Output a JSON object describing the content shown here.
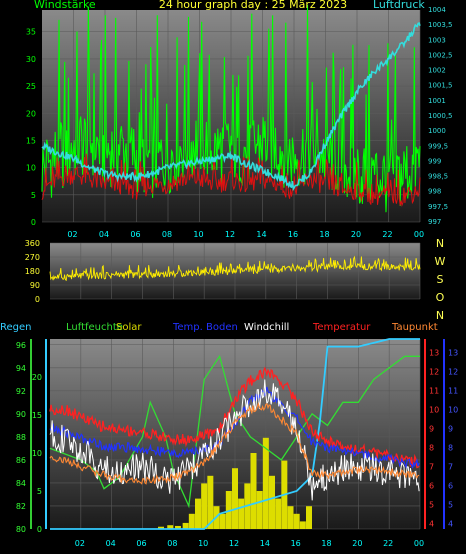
{
  "header": {
    "left_label": "Windstärke",
    "title": "24 hour graph day : 25 März 2023",
    "right_label": "Luftdruck"
  },
  "chart_data": [
    {
      "type": "line",
      "title": "24 hour graph day : 25 März 2023",
      "x_ticks": [
        "02",
        "04",
        "06",
        "08",
        "10",
        "12",
        "14",
        "16",
        "18",
        "20",
        "22",
        "00"
      ],
      "xlim": [
        0,
        24
      ],
      "left_axis": {
        "label": "Windstärke",
        "ticks": [
          0,
          5,
          10,
          15,
          20,
          25,
          30,
          35
        ],
        "ylim": [
          0,
          39
        ]
      },
      "right_axis": {
        "label": "Luftdruck",
        "ticks": [
          "997",
          "997,5",
          "998",
          "998,5",
          "999",
          "999,5",
          "1000",
          "1000,5",
          "1001",
          "1001,5",
          "1002",
          "1002,5",
          "1003",
          "1003,5",
          "1004"
        ],
        "ylim": [
          997,
          1004
        ]
      },
      "series": [
        {
          "name": "Windstärke",
          "axis": "left",
          "color": "#00ff00",
          "x": [
            0,
            1,
            2,
            3,
            4,
            5,
            6,
            7,
            8,
            9,
            10,
            11,
            12,
            13,
            14,
            15,
            16,
            17,
            18,
            19,
            20,
            21,
            22,
            23,
            24
          ],
          "y": [
            10,
            12,
            14,
            15,
            13,
            14,
            12,
            11,
            12,
            14,
            15,
            13,
            14,
            13,
            15,
            14,
            12,
            14,
            12,
            11,
            9,
            9,
            8,
            9,
            11
          ]
        },
        {
          "name": "",
          "axis": "left",
          "color": "#dd1111",
          "x": [
            0,
            1,
            2,
            3,
            4,
            5,
            6,
            7,
            8,
            9,
            10,
            11,
            12,
            13,
            14,
            15,
            16,
            17,
            18,
            19,
            20,
            21,
            22,
            23,
            24
          ],
          "y": [
            6,
            8,
            9,
            8,
            7,
            7,
            6,
            7,
            7,
            8,
            8,
            7,
            8,
            7,
            8,
            7,
            6,
            8,
            7,
            6,
            6,
            5,
            5,
            5,
            6
          ]
        },
        {
          "name": "Luftdruck",
          "axis": "right",
          "color": "#33dddd",
          "x": [
            0,
            1,
            2,
            3,
            4,
            5,
            6,
            7,
            8,
            9,
            10,
            11,
            12,
            13,
            14,
            15,
            16,
            17,
            18,
            19,
            20,
            21,
            22,
            23,
            24
          ],
          "y": [
            999.5,
            999.3,
            999.1,
            998.8,
            998.6,
            998.5,
            998.5,
            998.6,
            998.8,
            998.9,
            999.0,
            999.1,
            999.2,
            998.9,
            998.7,
            998.5,
            998.2,
            998.6,
            999.6,
            1000.5,
            1001.3,
            1001.9,
            1002.4,
            1002.9,
            1003.6
          ]
        }
      ],
      "grid": true
    },
    {
      "type": "line",
      "left_axis": {
        "ticks": [
          0,
          90,
          180,
          270,
          360
        ],
        "ylim": [
          0,
          360
        ]
      },
      "right_labels": [
        "N",
        "W",
        "S",
        "O",
        "N"
      ],
      "series": [
        {
          "name": "",
          "color": "#ffee00",
          "x": [
            0,
            2,
            4,
            6,
            8,
            10,
            12,
            14,
            16,
            18,
            20,
            22,
            24
          ],
          "y": [
            140,
            150,
            155,
            160,
            165,
            175,
            180,
            190,
            195,
            205,
            215,
            205,
            210
          ]
        }
      ],
      "grid": true
    },
    {
      "type": "line",
      "x_ticks": [
        "02",
        "04",
        "06",
        "08",
        "10",
        "12",
        "14",
        "16",
        "18",
        "20",
        "22",
        "00"
      ],
      "xlim": [
        0,
        24
      ],
      "legend": [
        {
          "label": "Regen",
          "color": "#33ccff"
        },
        {
          "label": "Luftfeuchte",
          "color": "#33dd33"
        },
        {
          "label": "Solar",
          "color": "#dddd00"
        },
        {
          "label": "Temp. Boden",
          "color": "#2233ff"
        },
        {
          "label": "Windchill",
          "color": "#ffffff"
        },
        {
          "label": "Temperatur",
          "color": "#ff2222"
        },
        {
          "label": "Taupunkt",
          "color": "#ff8833"
        }
      ],
      "axis_humidity": {
        "ticks": [
          80,
          82,
          84,
          86,
          88,
          90,
          92,
          94,
          96
        ],
        "ylim": [
          80,
          96.5
        ]
      },
      "axis_rain": {
        "ticks": [
          0,
          5,
          10,
          15,
          20
        ],
        "ylim": [
          0,
          25
        ]
      },
      "axis_temp": {
        "ticks": [
          4,
          5,
          6,
          7,
          8,
          9,
          10,
          11,
          12,
          13
        ],
        "ylim": [
          3.7,
          13.7
        ]
      },
      "axis_soil": {
        "ticks": [
          4,
          5,
          6,
          7,
          8,
          9,
          10,
          11,
          12,
          13
        ],
        "ylim": [
          3.7,
          13.7
        ]
      },
      "series": [
        {
          "name": "Luftfeuchte",
          "axis": "humidity",
          "color": "#33dd33",
          "x": [
            0,
            2,
            3,
            3.5,
            4.5,
            6,
            6.5,
            7.5,
            8,
            9,
            10,
            11,
            12,
            13,
            14,
            15,
            16,
            17,
            18,
            19,
            20,
            21,
            22,
            23,
            24
          ],
          "y": [
            87,
            86,
            85,
            83.5,
            84.5,
            88,
            91,
            88,
            85,
            82,
            93,
            95,
            90,
            88,
            87,
            86,
            88,
            90,
            89,
            91,
            91,
            93,
            94,
            95,
            95
          ]
        },
        {
          "name": "Regen",
          "axis": "rain",
          "color": "#33ccff",
          "x": [
            0,
            10,
            11,
            16,
            17,
            17.5,
            18,
            20,
            22,
            24
          ],
          "y": [
            0,
            0,
            2,
            5,
            7,
            14,
            24,
            24,
            25,
            25
          ]
        },
        {
          "name": "Temperatur",
          "axis": "temp",
          "color": "#ff2222",
          "x": [
            0,
            1,
            2,
            3,
            4,
            5,
            6,
            7,
            8,
            9,
            10,
            11,
            12,
            13,
            14,
            15,
            16,
            17,
            18,
            19,
            20,
            21,
            22,
            23,
            24
          ],
          "y": [
            10,
            10,
            9.6,
            9.2,
            9,
            8.9,
            8.8,
            8.6,
            8.4,
            8.4,
            8.6,
            9,
            10.5,
            11.5,
            12,
            11.5,
            10.5,
            8.8,
            8.3,
            8.1,
            7.9,
            7.7,
            7.5,
            7.3,
            7.2
          ]
        },
        {
          "name": "Temp. Boden",
          "axis": "soil",
          "color": "#2233ff",
          "x": [
            0,
            1,
            2,
            3,
            4,
            5,
            6,
            7,
            8,
            9,
            10,
            11,
            12,
            13,
            14,
            15,
            16,
            17,
            18,
            19,
            20,
            21,
            22,
            23,
            24
          ],
          "y": [
            9,
            8.8,
            8.5,
            8.2,
            8,
            8,
            7.9,
            7.8,
            7.7,
            7.7,
            7.9,
            8.2,
            9.2,
            10.5,
            11,
            10.2,
            9.5,
            8.3,
            8,
            7.9,
            7.7,
            7.5,
            7.4,
            7.2,
            7.1
          ]
        },
        {
          "name": "Windchill",
          "axis": "temp",
          "color": "#ffffff",
          "x": [
            0,
            1,
            2,
            3,
            4,
            5,
            6,
            7,
            8,
            9,
            10,
            11,
            12,
            13,
            14,
            15,
            16,
            17,
            18,
            19,
            20,
            21,
            22,
            23,
            24
          ],
          "y": [
            8.8,
            8.3,
            7.8,
            7.2,
            6.6,
            6.8,
            7,
            6.6,
            6.2,
            6.8,
            7.6,
            8.4,
            9.5,
            10.5,
            11,
            10.2,
            9,
            6,
            6.5,
            6.9,
            7,
            6.9,
            6.7,
            6.6,
            6.4
          ]
        },
        {
          "name": "Taupunkt",
          "axis": "temp",
          "color": "#ff8833",
          "x": [
            0,
            1,
            2,
            3,
            4,
            5,
            6,
            7,
            8,
            9,
            10,
            11,
            12,
            13,
            14,
            15,
            16,
            17,
            18,
            19,
            20,
            21,
            22,
            23,
            24
          ],
          "y": [
            7.5,
            7.3,
            7,
            6.7,
            6.4,
            6.3,
            6.2,
            6.3,
            6.4,
            6.7,
            7.2,
            8.2,
            9.3,
            10,
            10.2,
            9.5,
            8.7,
            6.6,
            6.5,
            6.7,
            6.8,
            6.8,
            6.7,
            6.6,
            6.5
          ]
        },
        {
          "name": "Solar",
          "axis": "rain",
          "color": "#dddd00",
          "kind": "bars",
          "x": [
            7.2,
            7.8,
            8.3,
            8.8,
            9.2,
            9.6,
            10,
            10.4,
            10.8,
            11.2,
            11.6,
            12,
            12.4,
            12.8,
            13.2,
            13.6,
            14,
            14.4,
            14.8,
            15.2,
            15.6,
            16,
            16.4,
            16.8
          ],
          "y": [
            0.3,
            0.5,
            0.4,
            0.8,
            2,
            4,
            6,
            7,
            3,
            2,
            5,
            8,
            4,
            6,
            10,
            5,
            12,
            7,
            4,
            9,
            3,
            2,
            1,
            3
          ]
        }
      ],
      "grid": true
    }
  ]
}
